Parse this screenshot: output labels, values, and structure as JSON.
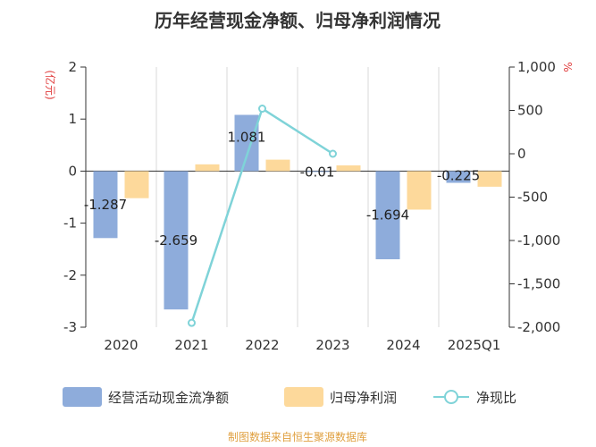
{
  "chart_data": {
    "type": "bar",
    "title": "历年经营现金净额、归母净利润情况",
    "categories": [
      "2020",
      "2021",
      "2022",
      "2023",
      "2024",
      "2025Q1"
    ],
    "left_axis": {
      "unit": "(亿元)",
      "ticks": [
        "2",
        "1",
        "0",
        "-1",
        "-2",
        "-3"
      ],
      "range": [
        -3,
        2
      ]
    },
    "right_axis": {
      "unit": "%",
      "ticks": [
        "1,000",
        "500",
        "0",
        "-500",
        "-1,000",
        "-1,500",
        "-2,000"
      ],
      "range": [
        -2000,
        1000
      ]
    },
    "series": [
      {
        "name": "经营活动现金流净额",
        "type": "bar",
        "axis": "left",
        "color": "#8eacdb",
        "values": [
          -1.287,
          -2.659,
          1.081,
          -0.01,
          -1.694,
          -0.225
        ],
        "labels": [
          "-1.287",
          "-2.659",
          "1.081",
          "-0.01",
          "-1.694",
          "-0.225"
        ]
      },
      {
        "name": "归母净利润",
        "type": "bar",
        "axis": "left",
        "color": "#fdd99b",
        "values": [
          -0.52,
          0.13,
          0.22,
          0.11,
          -0.74,
          -0.3
        ]
      },
      {
        "name": "净现比",
        "type": "line",
        "axis": "right",
        "color": "#7fd3d8",
        "values": [
          null,
          -1950,
          520,
          0,
          null,
          null
        ]
      }
    ],
    "grid": true,
    "legend_position": "bottom"
  },
  "footer": {
    "source": "制图数据来自恒生聚源数据库"
  },
  "colors": {
    "left_unit": "#e03c3c",
    "right_unit": "#e03c3c",
    "footer": "#e0a040",
    "grid": "#d8d8d8",
    "axis": "#333333"
  }
}
